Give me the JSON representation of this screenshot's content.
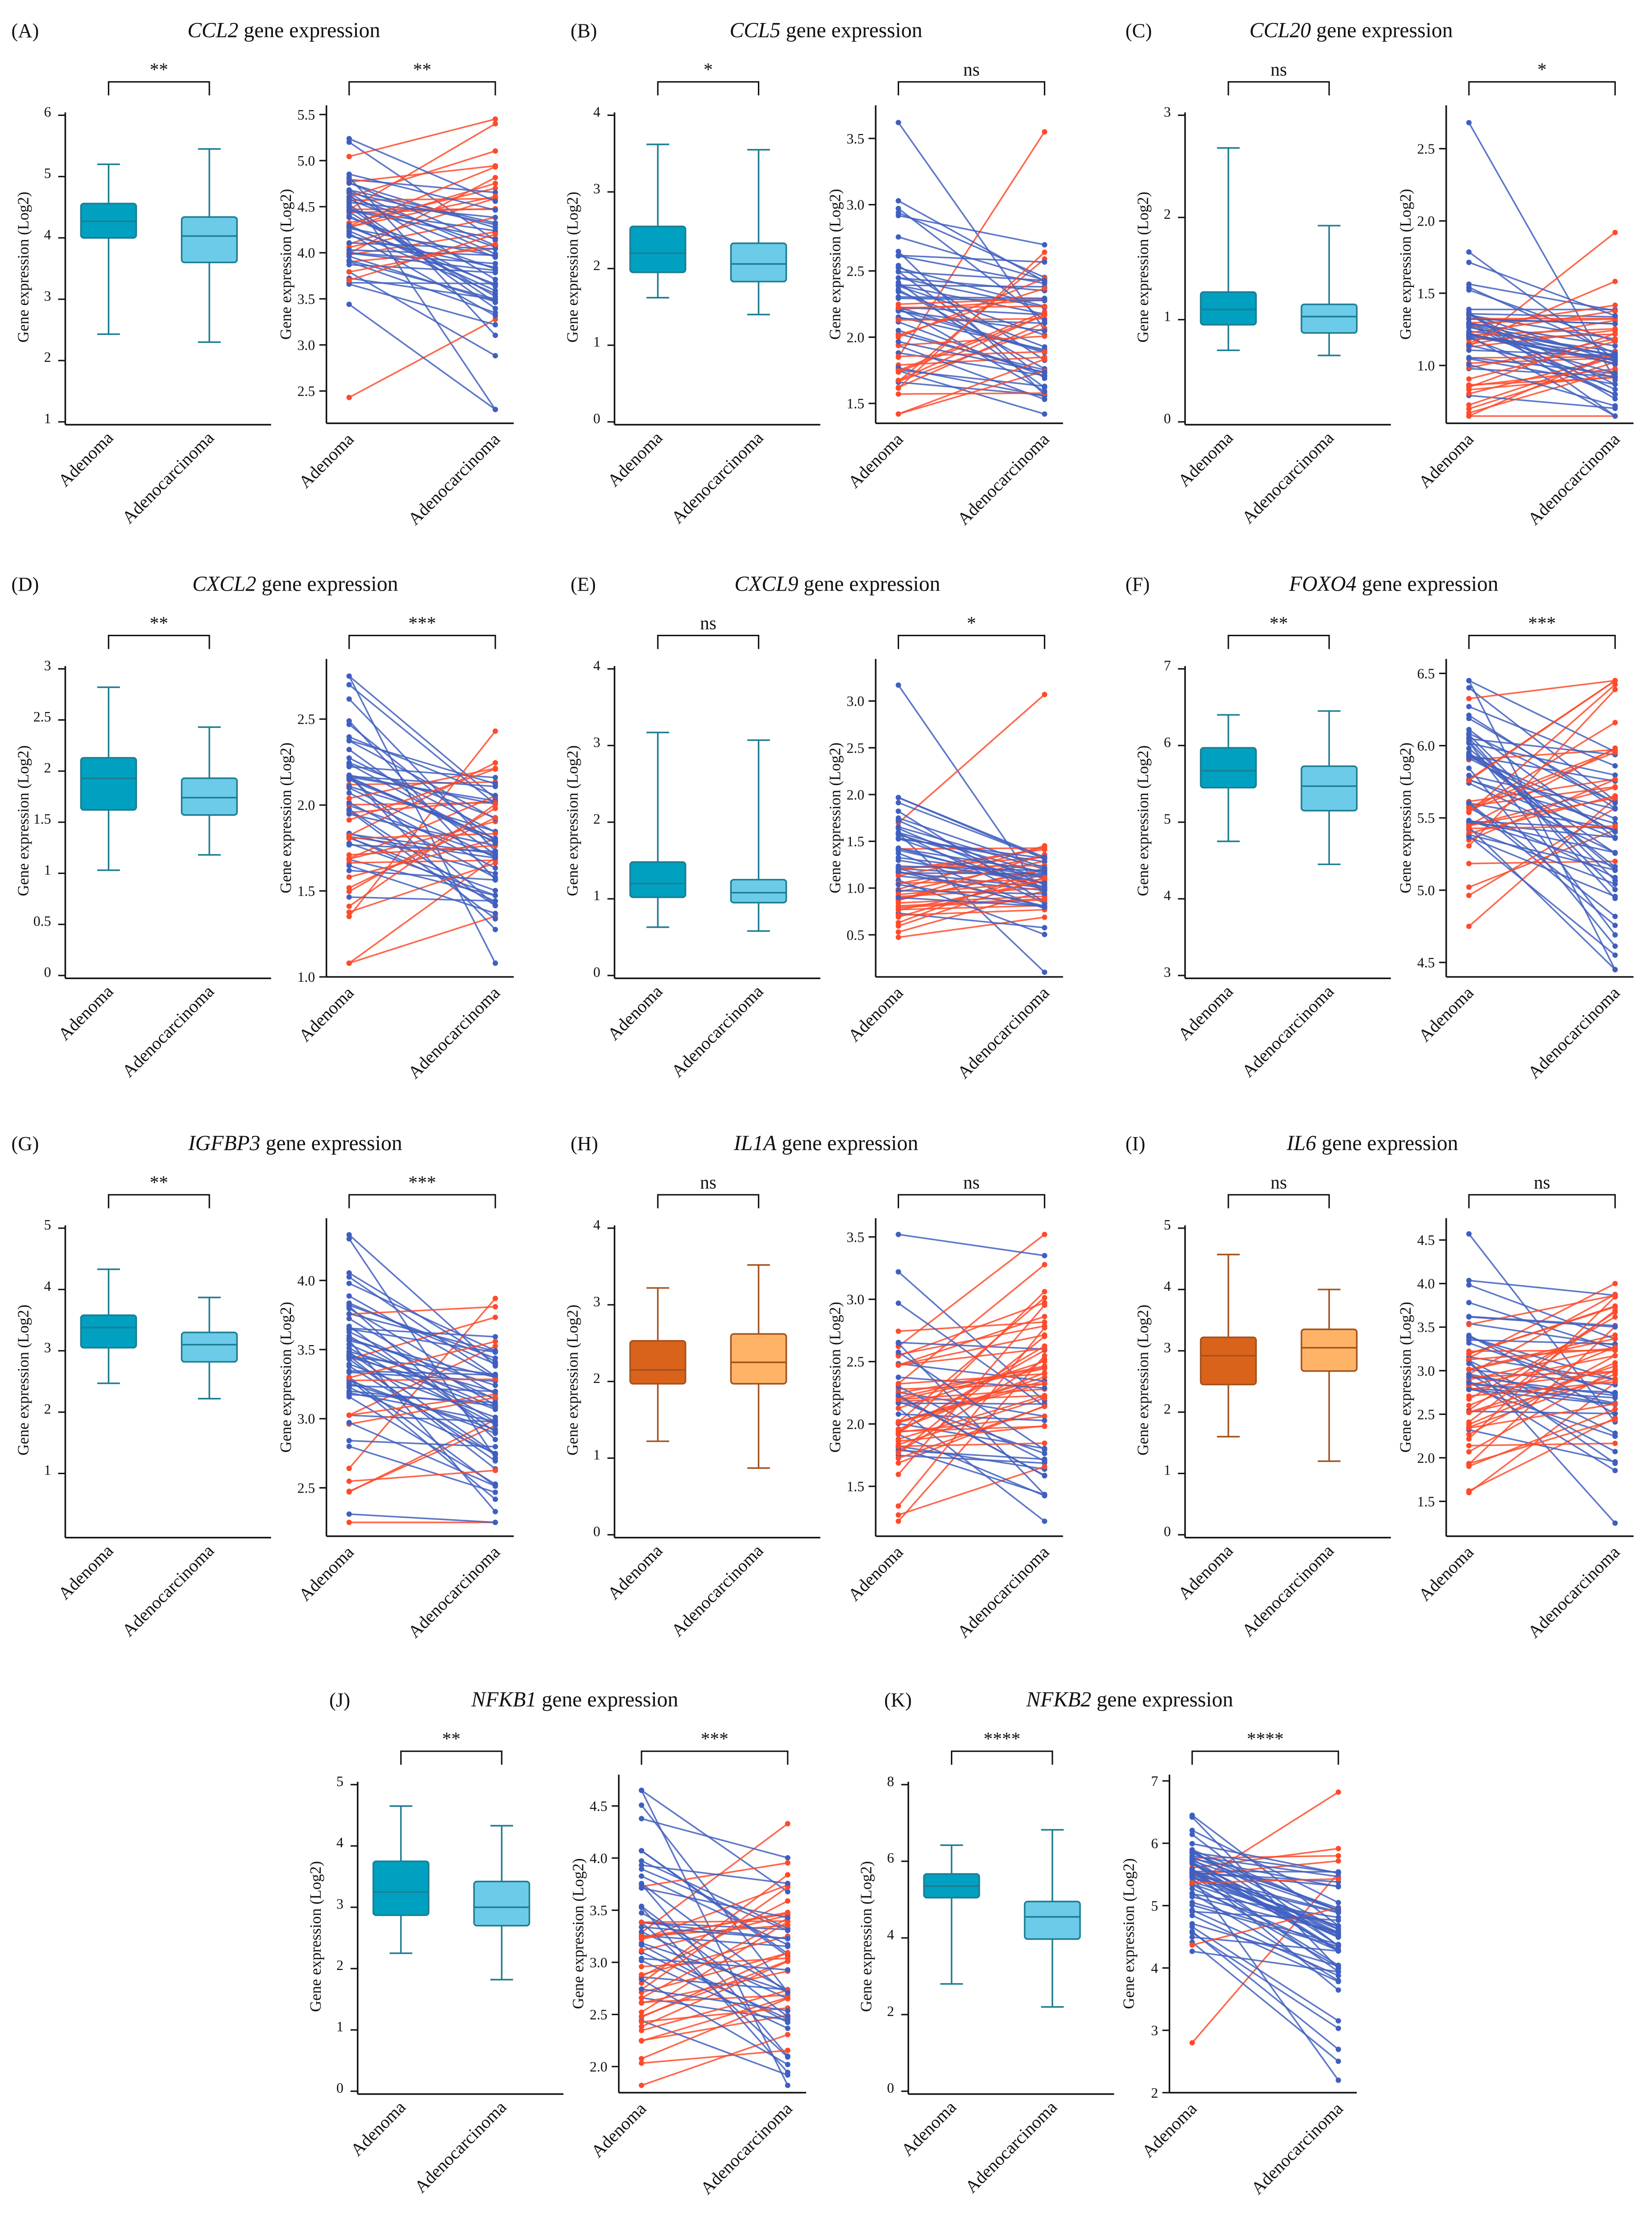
{
  "colors": {
    "box_dark": "#00a0c0",
    "box_light": "#6ccbe8",
    "box_edge": "#1c7d92",
    "orange_dark": "#da631c",
    "orange_light": "#ffb366",
    "orange_edge": "#a3521e",
    "line_down": "#3f5fc0",
    "line_up": "#ff4a2a"
  },
  "chart_data": [
    {
      "type": "box+paired-line",
      "panel": "(A)",
      "gene": "CCL2",
      "title_suffix": " gene expression",
      "ylabel": "Gene expression (Log2)",
      "categories": [
        "Adenoma",
        "Adenocarcinoma"
      ],
      "palette": "blue",
      "box_sig": "**",
      "paired_sig": "**",
      "box_ylim": [
        1,
        6
      ],
      "box_yticks": [
        "1",
        "2",
        "3",
        "4",
        "5",
        "6"
      ],
      "boxes": [
        {
          "min": 2.43,
          "q1": 4.0,
          "median": 4.27,
          "q3": 4.56,
          "max": 5.2
        },
        {
          "min": 2.3,
          "q1": 3.6,
          "median": 4.03,
          "q3": 4.34,
          "max": 5.45
        }
      ],
      "paired_ylim": [
        2.15,
        5.6
      ],
      "paired_yticks": [
        "2.5",
        "3.0",
        "3.5",
        "4.0",
        "4.5",
        "5.0",
        "5.5"
      ],
      "n_pairs": 60,
      "paired_range": [
        2.3,
        5.45
      ]
    },
    {
      "type": "box+paired-line",
      "panel": "(B)",
      "gene": "CCL5",
      "title_suffix": " gene expression",
      "ylabel": "Gene expression (Log2)",
      "categories": [
        "Adenoma",
        "Adenocarcinoma"
      ],
      "palette": "blue",
      "box_sig": "*",
      "paired_sig": "ns",
      "box_ylim": [
        0,
        4
      ],
      "box_yticks": [
        "0",
        "1",
        "2",
        "3",
        "4"
      ],
      "boxes": [
        {
          "min": 1.62,
          "q1": 1.95,
          "median": 2.2,
          "q3": 2.55,
          "max": 3.62
        },
        {
          "min": 1.4,
          "q1": 1.83,
          "median": 2.06,
          "q3": 2.33,
          "max": 3.55
        }
      ],
      "paired_ylim": [
        1.35,
        3.75
      ],
      "paired_yticks": [
        "1.5",
        "2.0",
        "2.5",
        "3.0",
        "3.5"
      ],
      "n_pairs": 60,
      "paired_range": [
        1.42,
        3.63
      ]
    },
    {
      "type": "box+paired-line",
      "panel": "(C)",
      "gene": "CCL20",
      "title_suffix": " gene expression",
      "ylabel": "Gene expression (Log2)",
      "categories": [
        "Adenoma",
        "Adenocarcinoma"
      ],
      "palette": "blue",
      "box_sig": "ns",
      "paired_sig": "*",
      "box_ylim": [
        0,
        3
      ],
      "box_yticks": [
        "0",
        "1",
        "2",
        "3"
      ],
      "boxes": [
        {
          "min": 0.7,
          "q1": 0.95,
          "median": 1.1,
          "q3": 1.27,
          "max": 2.68
        },
        {
          "min": 0.65,
          "q1": 0.87,
          "median": 1.03,
          "q3": 1.15,
          "max": 1.92
        }
      ],
      "paired_ylim": [
        0.6,
        2.8
      ],
      "paired_yticks": [
        "1.0",
        "1.5",
        "2.0",
        "2.5"
      ],
      "n_pairs": 60,
      "paired_range": [
        0.65,
        2.68
      ]
    },
    {
      "type": "box+paired-line",
      "panel": "(D)",
      "gene": "CXCL2",
      "title_suffix": " gene expression",
      "ylabel": "Gene expression (Log2)",
      "categories": [
        "Adenoma",
        "Adenocarcinoma"
      ],
      "palette": "blue",
      "box_sig": "**",
      "paired_sig": "***",
      "box_ylim": [
        0,
        3
      ],
      "box_yticks": [
        "0",
        "0.5",
        "1",
        "1.5",
        "2",
        "2.5",
        "3"
      ],
      "boxes": [
        {
          "min": 1.03,
          "q1": 1.62,
          "median": 1.93,
          "q3": 2.13,
          "max": 2.82
        },
        {
          "min": 1.18,
          "q1": 1.57,
          "median": 1.74,
          "q3": 1.93,
          "max": 2.43
        }
      ],
      "paired_ylim": [
        1.0,
        2.85
      ],
      "paired_yticks": [
        "1.0",
        "1.5",
        "2.0",
        "2.5"
      ],
      "n_pairs": 60,
      "paired_range": [
        1.08,
        2.75
      ]
    },
    {
      "type": "box+paired-line",
      "panel": "(E)",
      "gene": "CXCL9",
      "title_suffix": " gene expression",
      "ylabel": "Gene expression (Log2)",
      "categories": [
        "Adenoma",
        "Adenocarcinoma"
      ],
      "palette": "blue",
      "box_sig": "ns",
      "paired_sig": "*",
      "box_ylim": [
        0,
        4
      ],
      "box_yticks": [
        "0",
        "1",
        "2",
        "3",
        "4"
      ],
      "boxes": [
        {
          "min": 0.63,
          "q1": 1.02,
          "median": 1.2,
          "q3": 1.48,
          "max": 3.17
        },
        {
          "min": 0.58,
          "q1": 0.95,
          "median": 1.08,
          "q3": 1.25,
          "max": 3.07
        }
      ],
      "paired_ylim": [
        0.05,
        3.45
      ],
      "paired_yticks": [
        "0.5",
        "1.0",
        "1.5",
        "2.0",
        "2.5",
        "3.0"
      ],
      "n_pairs": 60,
      "paired_range": [
        0.1,
        3.2
      ]
    },
    {
      "type": "box+paired-line",
      "panel": "(F)",
      "gene": "FOXO4",
      "title_suffix": " gene expression",
      "ylabel": "Gene expression (Log2)",
      "categories": [
        "Adenoma",
        "Adenocarcinoma"
      ],
      "palette": "blue",
      "box_sig": "**",
      "paired_sig": "***",
      "box_ylim": [
        3,
        7
      ],
      "box_yticks": [
        "3",
        "4",
        "5",
        "6",
        "7"
      ],
      "boxes": [
        {
          "min": 4.75,
          "q1": 5.45,
          "median": 5.67,
          "q3": 5.97,
          "max": 6.4
        },
        {
          "min": 4.45,
          "q1": 5.15,
          "median": 5.47,
          "q3": 5.73,
          "max": 6.45
        }
      ],
      "paired_ylim": [
        4.4,
        6.6
      ],
      "paired_yticks": [
        "4.5",
        "5.0",
        "5.5",
        "6.0",
        "6.5"
      ],
      "n_pairs": 60,
      "paired_range": [
        4.45,
        6.45
      ]
    },
    {
      "type": "box+paired-line",
      "panel": "(G)",
      "gene": "IGFBP3",
      "title_suffix": " gene expression",
      "ylabel": "Gene expression (Log2)",
      "categories": [
        "Adenoma",
        "Adenocarcinoma"
      ],
      "palette": "blue",
      "box_sig": "**",
      "paired_sig": "***",
      "box_ylim": [
        0,
        5
      ],
      "box_yticks": [
        "1",
        "2",
        "3",
        "4",
        "5"
      ],
      "boxes": [
        {
          "min": 2.47,
          "q1": 3.05,
          "median": 3.38,
          "q3": 3.58,
          "max": 4.33
        },
        {
          "min": 2.22,
          "q1": 2.82,
          "median": 3.1,
          "q3": 3.3,
          "max": 3.87
        }
      ],
      "paired_ylim": [
        2.15,
        4.45
      ],
      "paired_yticks": [
        "2.5",
        "3.0",
        "3.5",
        "4.0"
      ],
      "n_pairs": 60,
      "paired_range": [
        2.25,
        4.33
      ]
    },
    {
      "type": "box+paired-line",
      "panel": "(H)",
      "gene": "IL1A",
      "title_suffix": " gene expression",
      "ylabel": "Gene expression (Log2)",
      "categories": [
        "Adenoma",
        "Adenocarcinoma"
      ],
      "palette": "orange",
      "box_sig": "ns",
      "paired_sig": "ns",
      "box_ylim": [
        0,
        4
      ],
      "box_yticks": [
        "0",
        "1",
        "2",
        "3",
        "4"
      ],
      "boxes": [
        {
          "min": 1.22,
          "q1": 1.97,
          "median": 2.15,
          "q3": 2.53,
          "max": 3.22
        },
        {
          "min": 0.87,
          "q1": 1.97,
          "median": 2.25,
          "q3": 2.62,
          "max": 3.52
        }
      ],
      "paired_ylim": [
        1.1,
        3.65
      ],
      "paired_yticks": [
        "1.5",
        "2.0",
        "2.5",
        "3.0",
        "3.5"
      ],
      "n_pairs": 60,
      "paired_range": [
        1.22,
        3.52
      ]
    },
    {
      "type": "box+paired-line",
      "panel": "(I)",
      "gene": "IL6",
      "title_suffix": " gene expression",
      "ylabel": "Gene expression (Log2)",
      "categories": [
        "Adenoma",
        "Adenocarcinoma"
      ],
      "palette": "orange",
      "box_sig": "ns",
      "paired_sig": "ns",
      "box_ylim": [
        0,
        5
      ],
      "box_yticks": [
        "0",
        "1",
        "2",
        "3",
        "4",
        "5"
      ],
      "boxes": [
        {
          "min": 1.6,
          "q1": 2.45,
          "median": 2.92,
          "q3": 3.22,
          "max": 4.57
        },
        {
          "min": 1.2,
          "q1": 2.67,
          "median": 3.05,
          "q3": 3.35,
          "max": 4.0
        }
      ],
      "paired_ylim": [
        1.1,
        4.75
      ],
      "paired_yticks": [
        "1.5",
        "2.0",
        "2.5",
        "3.0",
        "3.5",
        "4.0",
        "4.5"
      ],
      "n_pairs": 60,
      "paired_range": [
        1.25,
        4.57
      ]
    },
    {
      "type": "box+paired-line",
      "panel": "(J)",
      "gene": "NFKB1",
      "title_suffix": " gene expression",
      "ylabel": "Gene expression (Log2)",
      "categories": [
        "Adenoma",
        "Adenocarcinoma"
      ],
      "palette": "blue",
      "box_sig": "**",
      "paired_sig": "***",
      "box_ylim": [
        0,
        5
      ],
      "box_yticks": [
        "0",
        "1",
        "2",
        "3",
        "4",
        "5"
      ],
      "boxes": [
        {
          "min": 2.25,
          "q1": 2.87,
          "median": 3.25,
          "q3": 3.75,
          "max": 4.65
        },
        {
          "min": 1.82,
          "q1": 2.7,
          "median": 3.0,
          "q3": 3.42,
          "max": 4.33
        }
      ],
      "paired_ylim": [
        1.75,
        4.8
      ],
      "paired_yticks": [
        "2.0",
        "2.5",
        "3.0",
        "3.5",
        "4.0",
        "4.5"
      ],
      "n_pairs": 60,
      "paired_range": [
        1.82,
        4.65
      ]
    },
    {
      "type": "box+paired-line",
      "panel": "(K)",
      "gene": "NFKB2",
      "title_suffix": " gene expression",
      "ylabel": "Gene expression (Log2)",
      "categories": [
        "Adenoma",
        "Adenocarcinoma"
      ],
      "palette": "blue",
      "box_sig": "****",
      "paired_sig": "****",
      "box_ylim": [
        0,
        8
      ],
      "box_yticks": [
        "0",
        "2",
        "4",
        "6",
        "8"
      ],
      "boxes": [
        {
          "min": 2.8,
          "q1": 5.05,
          "median": 5.35,
          "q3": 5.67,
          "max": 6.42
        },
        {
          "min": 2.2,
          "q1": 3.97,
          "median": 4.55,
          "q3": 4.95,
          "max": 6.82
        }
      ],
      "paired_ylim": [
        2.0,
        7.1
      ],
      "paired_yticks": [
        "2",
        "3",
        "4",
        "5",
        "6",
        "7"
      ],
      "n_pairs": 60,
      "paired_range": [
        2.2,
        6.85
      ]
    }
  ]
}
